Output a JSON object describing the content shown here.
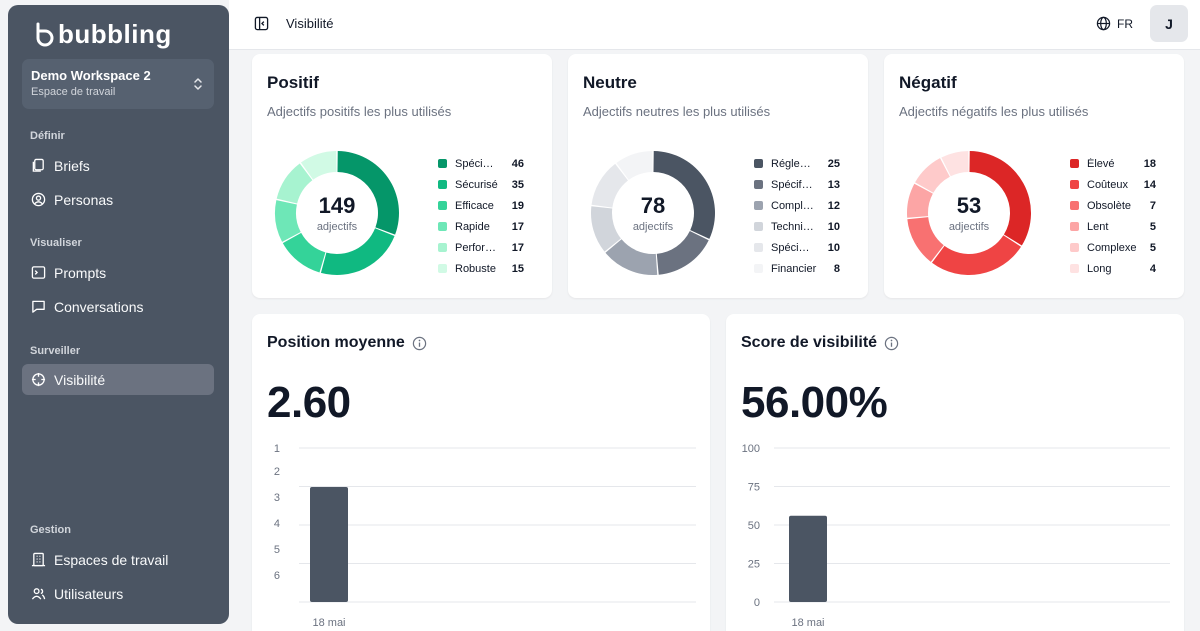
{
  "sidebar": {
    "logo": "bubbling",
    "workspace": {
      "name": "Demo Workspace 2",
      "subtitle": "Espace de travail"
    },
    "sections": [
      {
        "title": "Définir",
        "items": [
          {
            "label": "Briefs",
            "icon": "briefs-icon"
          },
          {
            "label": "Personas",
            "icon": "persona-icon"
          }
        ]
      },
      {
        "title": "Visualiser",
        "items": [
          {
            "label": "Prompts",
            "icon": "prompt-icon"
          },
          {
            "label": "Conversations",
            "icon": "chat-icon"
          }
        ]
      },
      {
        "title": "Surveiller",
        "items": [
          {
            "label": "Visibilité",
            "icon": "crosshair-icon",
            "active": true
          }
        ]
      },
      {
        "title": "Gestion",
        "items": [
          {
            "label": "Espaces de travail",
            "icon": "building-icon"
          },
          {
            "label": "Utilisateurs",
            "icon": "users-icon"
          }
        ]
      }
    ]
  },
  "topbar": {
    "title": "Visibilité",
    "lang": "FR",
    "avatar": "J"
  },
  "sentiment": [
    {
      "title": "Positif",
      "subtitle": "Adjectifs positifs les plus utilisés",
      "total": "149",
      "unit": "adjectifs",
      "items": [
        {
          "label": "Spéci…",
          "value": 46,
          "color": "#059669"
        },
        {
          "label": "Sécurisé",
          "value": 35,
          "color": "#10b981"
        },
        {
          "label": "Efficace",
          "value": 19,
          "color": "#34d399"
        },
        {
          "label": "Rapide",
          "value": 17,
          "color": "#6ee7b7"
        },
        {
          "label": "Perfor…",
          "value": 17,
          "color": "#a7f3d0"
        },
        {
          "label": "Robuste",
          "value": 15,
          "color": "#d1fae5"
        }
      ]
    },
    {
      "title": "Neutre",
      "subtitle": "Adjectifs neutres les plus utilisés",
      "total": "78",
      "unit": "adjectifs",
      "items": [
        {
          "label": "Régle…",
          "value": 25,
          "color": "#4b5563"
        },
        {
          "label": "Spécif…",
          "value": 13,
          "color": "#6b7280"
        },
        {
          "label": "Compl…",
          "value": 12,
          "color": "#9ca3af"
        },
        {
          "label": "Techni…",
          "value": 10,
          "color": "#d1d5db"
        },
        {
          "label": "Spéci…",
          "value": 10,
          "color": "#e5e7eb"
        },
        {
          "label": "Financier",
          "value": 8,
          "color": "#f3f4f6"
        }
      ]
    },
    {
      "title": "Négatif",
      "subtitle": "Adjectifs négatifs les plus utilisés",
      "total": "53",
      "unit": "adjectifs",
      "items": [
        {
          "label": "Élevé",
          "value": 18,
          "color": "#dc2626"
        },
        {
          "label": "Coûteux",
          "value": 14,
          "color": "#ef4444"
        },
        {
          "label": "Obsolète",
          "value": 7,
          "color": "#f87171"
        },
        {
          "label": "Lent",
          "value": 5,
          "color": "#fca5a5"
        },
        {
          "label": "Complexe",
          "value": 5,
          "color": "#fecaca"
        },
        {
          "label": "Long",
          "value": 4,
          "color": "#fee2e2"
        }
      ]
    }
  ],
  "metrics": {
    "position": {
      "title": "Position moyenne",
      "value": "2.60"
    },
    "score": {
      "title": "Score de visibilité",
      "value": "56.00%"
    }
  },
  "chart_data": [
    {
      "type": "bar",
      "categories": [
        "18 mai"
      ],
      "values": [
        2.6
      ],
      "y_ticks": [
        "1",
        "2",
        "3",
        "4",
        "5",
        "6"
      ],
      "ylim": [
        1,
        6
      ],
      "y_inverted": true,
      "bar_color": "#4b5563"
    },
    {
      "type": "bar",
      "categories": [
        "18 mai"
      ],
      "values": [
        56
      ],
      "y_ticks": [
        "100",
        "75",
        "50",
        "25",
        "0"
      ],
      "ylim": [
        0,
        100
      ],
      "bar_color": "#4b5563"
    }
  ]
}
